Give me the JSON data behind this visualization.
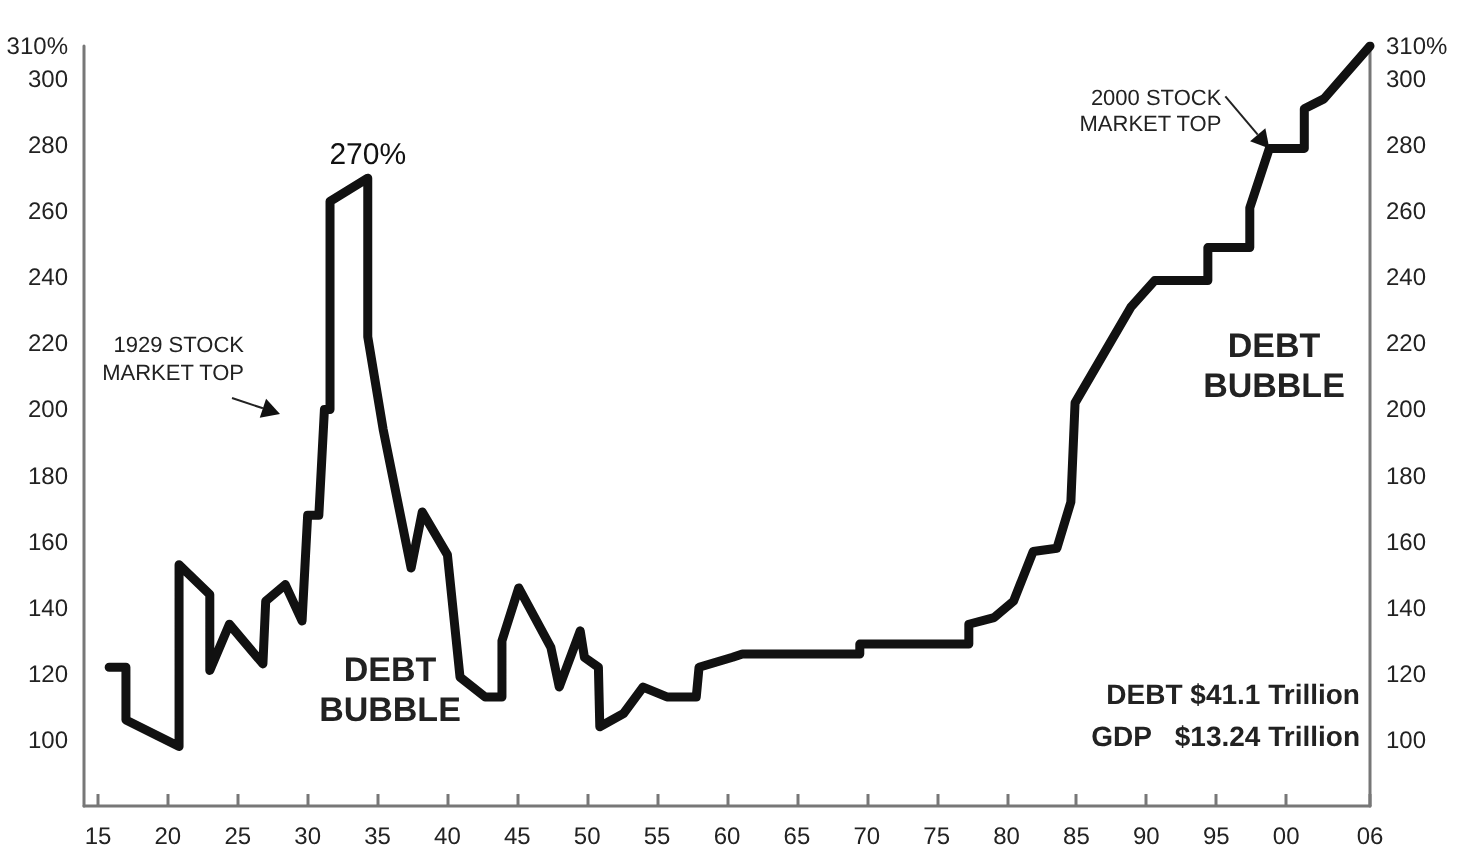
{
  "chart_data": {
    "type": "line",
    "x": [
      1915.8,
      1917,
      1917,
      1920.8,
      1920.8,
      1923,
      1923,
      1924.4,
      1926.8,
      1927,
      1928.4,
      1929.6,
      1930,
      1930.8,
      1931.2,
      1931.6,
      1931.6,
      1934.3,
      1934.3,
      1935.4,
      1937.4,
      1938.2,
      1940,
      1940.9,
      1942.7,
      1943.9,
      1943.9,
      1945.1,
      1947.4,
      1948,
      1949.5,
      1949.8,
      1950.8,
      1950.9,
      1952.6,
      1954,
      1955.7,
      1957.8,
      1958,
      1960.4,
      1961.1,
      1969.5,
      1969.5,
      1977.3,
      1977.3,
      1979.1,
      1980.5,
      1981.9,
      1983.6,
      1984.6,
      1984.9,
      1988.9,
      1990.6,
      1994.4,
      1994.4,
      1997.4,
      1997.4,
      1998.8,
      2001.3,
      2001.3,
      2002.7,
      2006
    ],
    "series": [
      {
        "color": "#111111",
        "values": [
          122,
          122,
          106,
          98,
          153,
          144,
          121,
          135,
          123,
          142,
          147,
          136,
          168,
          168,
          200,
          200,
          263,
          270,
          222,
          194,
          152,
          169,
          156,
          119,
          113,
          113,
          130,
          146,
          128,
          116,
          133,
          125,
          122,
          104,
          108,
          116,
          113,
          113,
          122,
          125,
          126,
          126,
          129,
          129,
          135,
          137,
          142,
          157,
          158,
          172,
          202,
          231,
          239,
          239,
          249,
          249,
          261,
          279,
          279,
          291,
          294,
          310
        ]
      }
    ],
    "xlim": [
      1914,
      2006
    ],
    "xticks": [
      {
        "value": 1915,
        "label": "15"
      },
      {
        "value": 1920,
        "label": "20"
      },
      {
        "value": 1925,
        "label": "25"
      },
      {
        "value": 1930,
        "label": "30"
      },
      {
        "value": 1935,
        "label": "35"
      },
      {
        "value": 1940,
        "label": "40"
      },
      {
        "value": 1945,
        "label": "45"
      },
      {
        "value": 1950,
        "label": "50"
      },
      {
        "value": 1955,
        "label": "55"
      },
      {
        "value": 1960,
        "label": "60"
      },
      {
        "value": 1965,
        "label": "65"
      },
      {
        "value": 1970,
        "label": "70"
      },
      {
        "value": 1975,
        "label": "75"
      },
      {
        "value": 1980,
        "label": "80"
      },
      {
        "value": 1985,
        "label": "85"
      },
      {
        "value": 1990,
        "label": "90"
      },
      {
        "value": 1995,
        "label": "95"
      },
      {
        "value": 2000,
        "label": "00"
      },
      {
        "value": 2006,
        "label": "06"
      }
    ],
    "ylim": [
      80,
      310
    ],
    "yticks": [
      100,
      120,
      140,
      160,
      180,
      200,
      220,
      240,
      260,
      280,
      300,
      {
        "value": 310,
        "label": "310%"
      }
    ],
    "y2lim": [
      80,
      310
    ],
    "y2ticks": [
      100,
      120,
      140,
      160,
      180,
      200,
      220,
      240,
      260,
      280,
      300,
      {
        "value": 310,
        "label": "310%"
      }
    ],
    "annotations": [
      {
        "text": "270%",
        "x": 1934.3,
        "y": 270
      },
      "1929 STOCK\nMARKET TOP",
      {
        "text": "2000 STOCK\nMARKET TOP",
        "x": 1998.8,
        "y": 279
      },
      "DEBT\nBUBBLE",
      "DEBT\nBUBBLE",
      "DEBT $41.1 Trillion",
      "GDP   $13.24 Trillion"
    ],
    "grid": false,
    "marker": "none",
    "line_style": "solid"
  }
}
